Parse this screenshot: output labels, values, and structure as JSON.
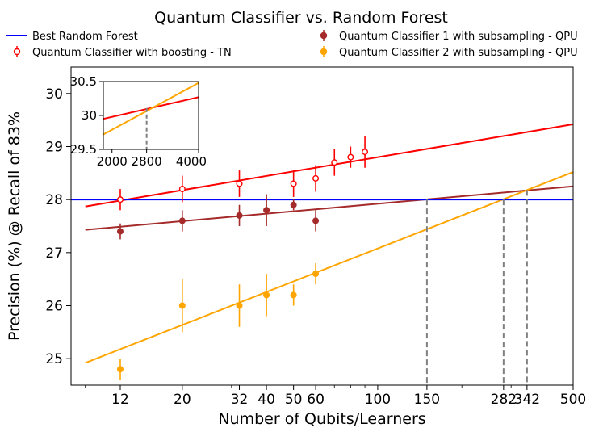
{
  "chart_data": {
    "type": "scatter",
    "title": "Quantum Classifier vs. Random Forest",
    "xlabel": "Number of Qubits/Learners",
    "ylabel": "Precision (%) @ Recall of 83%",
    "xscale": "log",
    "xlim": [
      8,
      500
    ],
    "ylim": [
      24.5,
      30.5
    ],
    "xticks": [
      12,
      20,
      32,
      40,
      50,
      60,
      100,
      150,
      282,
      342,
      500
    ],
    "xtick_labels": [
      "12",
      "20",
      "32",
      "40",
      "50",
      "60",
      "100",
      "150",
      "282",
      "342",
      "500"
    ],
    "yticks": [
      25,
      26,
      27,
      28,
      29,
      30
    ],
    "ytick_labels": [
      "25",
      "26",
      "27",
      "28",
      "29",
      "30"
    ],
    "grid": false,
    "legend_position": "top (above plot, two columns)",
    "series": [
      {
        "name": "Best Random Forest",
        "kind": "hline",
        "color": "#0000ff",
        "y": 28.0
      },
      {
        "name": "Quantum Classifier with boosting - TN",
        "kind": "errorbar-open",
        "color": "#ff0000",
        "x": [
          12,
          20,
          32,
          50,
          60,
          70,
          80,
          90
        ],
        "y": [
          28.0,
          28.2,
          28.3,
          28.3,
          28.4,
          28.7,
          28.8,
          28.9
        ],
        "yerr": [
          0.2,
          0.25,
          0.25,
          0.25,
          0.25,
          0.25,
          0.2,
          0.3
        ],
        "fit": {
          "x_start": 9,
          "x_end": 500,
          "y_start": 27.87,
          "y_end": 29.42
        }
      },
      {
        "name": "Quantum Classifier 1 with subsampling - QPU",
        "kind": "errorbar-filled",
        "color": "#a52a2a",
        "x": [
          12,
          20,
          32,
          40,
          50,
          60
        ],
        "y": [
          27.4,
          27.6,
          27.7,
          27.8,
          27.9,
          27.6
        ],
        "yerr": [
          0.15,
          0.2,
          0.2,
          0.3,
          0.1,
          0.2
        ],
        "fit": {
          "x_start": 9,
          "x_end": 500,
          "y_start": 27.43,
          "y_end": 28.25
        }
      },
      {
        "name": "Quantum Classifier 2 with subsampling - QPU",
        "kind": "errorbar-filled",
        "color": "#ffa500",
        "x": [
          12,
          20,
          32,
          40,
          50,
          60
        ],
        "y": [
          24.8,
          26.0,
          26.0,
          26.2,
          26.2,
          26.6
        ],
        "yerr": [
          0.2,
          0.5,
          0.4,
          0.4,
          0.2,
          0.2
        ],
        "fit": {
          "x_start": 9,
          "x_end": 500,
          "y_start": 24.92,
          "y_end": 28.52
        }
      }
    ],
    "annotations": [
      {
        "kind": "vline-dashed",
        "x": 150,
        "y_top": 28.0,
        "color": "#808080"
      },
      {
        "kind": "vline-dashed",
        "x": 282,
        "y_top": 28.0,
        "color": "#808080"
      },
      {
        "kind": "vline-dashed",
        "x": 342,
        "y_top": 28.18,
        "color": "#808080"
      }
    ],
    "inset": {
      "xlim": [
        1800,
        4000
      ],
      "ylim": [
        29.5,
        30.5
      ],
      "xticks": [
        2000,
        2800,
        4000
      ],
      "xtick_labels": [
        "2000",
        "2800",
        "4000"
      ],
      "yticks": [
        29.5,
        30,
        30.5
      ],
      "ytick_labels": [
        "29.5",
        "30",
        "30.5"
      ],
      "lines": [
        {
          "color": "#ff0000",
          "x": [
            1800,
            4000
          ],
          "y": [
            29.95,
            30.27
          ]
        },
        {
          "color": "#ffa500",
          "x": [
            1800,
            4000
          ],
          "y": [
            29.72,
            30.48
          ]
        }
      ],
      "vline": {
        "x": 2800,
        "y_top": 30.11,
        "color": "#808080"
      }
    }
  }
}
